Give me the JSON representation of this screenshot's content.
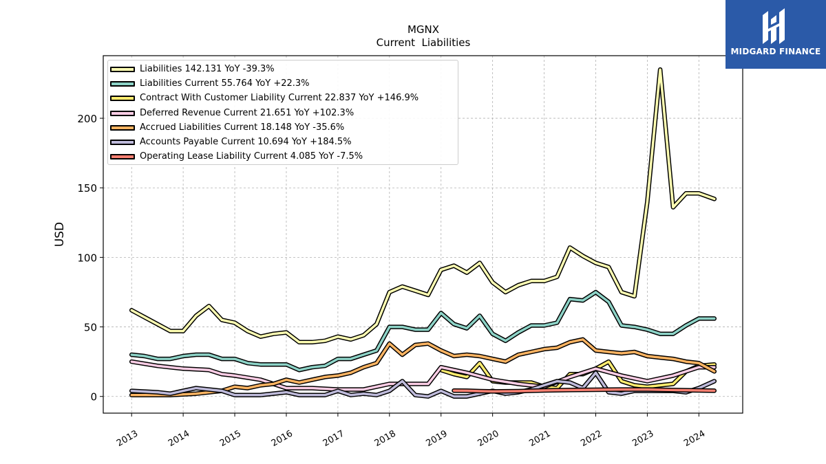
{
  "brand": {
    "name": "MIDGARD FINANCE",
    "logo_icon": "midgard-logo-icon",
    "background": "#2b5aa8"
  },
  "chart_data": {
    "type": "line",
    "title": "MGNX",
    "subtitle": "Current  Liabilities",
    "xlabel": "",
    "ylabel": "USD",
    "ylim": [
      -12,
      245
    ],
    "xlim": [
      2012.45,
      2024.85
    ],
    "yticks": [
      0,
      50,
      100,
      150,
      200
    ],
    "xticks": [
      "2013",
      "2014",
      "2015",
      "2016",
      "2017",
      "2018",
      "2019",
      "2020",
      "2021",
      "2022",
      "2023",
      "2024"
    ],
    "grid": true,
    "legend_position": "top-left",
    "series": [
      {
        "name": "Liabilities",
        "legend": "Liabilities  142.131 YoY -39.3%",
        "color": "#ffffb3",
        "points": [
          [
            2013.0,
            62
          ],
          [
            2013.25,
            57
          ],
          [
            2013.5,
            52
          ],
          [
            2013.75,
            47
          ],
          [
            2014.0,
            47
          ],
          [
            2014.25,
            58
          ],
          [
            2014.5,
            65
          ],
          [
            2014.75,
            55
          ],
          [
            2015.0,
            53
          ],
          [
            2015.25,
            47
          ],
          [
            2015.5,
            43
          ],
          [
            2015.75,
            45
          ],
          [
            2016.0,
            46
          ],
          [
            2016.25,
            39
          ],
          [
            2016.5,
            39
          ],
          [
            2016.75,
            40
          ],
          [
            2017.0,
            43
          ],
          [
            2017.25,
            41
          ],
          [
            2017.5,
            44
          ],
          [
            2017.75,
            52
          ],
          [
            2018.0,
            75
          ],
          [
            2018.25,
            79
          ],
          [
            2018.5,
            76
          ],
          [
            2018.75,
            73
          ],
          [
            2019.0,
            91
          ],
          [
            2019.25,
            94
          ],
          [
            2019.5,
            89
          ],
          [
            2019.75,
            96
          ],
          [
            2020.0,
            82
          ],
          [
            2020.25,
            75
          ],
          [
            2020.5,
            80
          ],
          [
            2020.75,
            83
          ],
          [
            2021.0,
            83
          ],
          [
            2021.25,
            86
          ],
          [
            2021.5,
            107
          ],
          [
            2021.75,
            101
          ],
          [
            2022.0,
            96
          ],
          [
            2022.25,
            93
          ],
          [
            2022.5,
            75
          ],
          [
            2022.75,
            72
          ],
          [
            2023.0,
            140
          ],
          [
            2023.25,
            235
          ],
          [
            2023.5,
            136
          ],
          [
            2023.75,
            146
          ],
          [
            2024.0,
            146
          ],
          [
            2024.3,
            142
          ]
        ]
      },
      {
        "name": "Liabilities Current",
        "legend": "Liabilities Current  55.764 YoY +22.3%",
        "color": "#8dd3c7",
        "points": [
          [
            2013.0,
            30
          ],
          [
            2013.25,
            29
          ],
          [
            2013.5,
            27
          ],
          [
            2013.75,
            27
          ],
          [
            2014.0,
            29
          ],
          [
            2014.25,
            30
          ],
          [
            2014.5,
            30
          ],
          [
            2014.75,
            27
          ],
          [
            2015.0,
            27
          ],
          [
            2015.25,
            24
          ],
          [
            2015.5,
            23
          ],
          [
            2015.75,
            23
          ],
          [
            2016.0,
            23
          ],
          [
            2016.25,
            19
          ],
          [
            2016.5,
            21
          ],
          [
            2016.75,
            22
          ],
          [
            2017.0,
            27
          ],
          [
            2017.25,
            27
          ],
          [
            2017.5,
            30
          ],
          [
            2017.75,
            33
          ],
          [
            2018.0,
            50
          ],
          [
            2018.25,
            50
          ],
          [
            2018.5,
            48
          ],
          [
            2018.75,
            48
          ],
          [
            2019.0,
            60
          ],
          [
            2019.25,
            52
          ],
          [
            2019.5,
            49
          ],
          [
            2019.75,
            58
          ],
          [
            2020.0,
            45
          ],
          [
            2020.25,
            40
          ],
          [
            2020.5,
            46
          ],
          [
            2020.75,
            51
          ],
          [
            2021.0,
            51
          ],
          [
            2021.25,
            53
          ],
          [
            2021.5,
            70
          ],
          [
            2021.75,
            69
          ],
          [
            2022.0,
            75
          ],
          [
            2022.25,
            68
          ],
          [
            2022.5,
            51
          ],
          [
            2022.75,
            50
          ],
          [
            2023.0,
            48
          ],
          [
            2023.25,
            45
          ],
          [
            2023.5,
            45
          ],
          [
            2023.75,
            51
          ],
          [
            2024.0,
            56
          ],
          [
            2024.3,
            56
          ]
        ]
      },
      {
        "name": "Contract With Customer Liability Current",
        "legend": "Contract With Customer Liability Current  22.837 YoY +146.9%",
        "color": "#ffed6f",
        "points": [
          [
            2019.0,
            19
          ],
          [
            2019.25,
            16
          ],
          [
            2019.5,
            14
          ],
          [
            2019.75,
            24
          ],
          [
            2020.0,
            11
          ],
          [
            2020.25,
            10
          ],
          [
            2020.5,
            10
          ],
          [
            2020.75,
            10
          ],
          [
            2021.0,
            7
          ],
          [
            2021.25,
            6
          ],
          [
            2021.5,
            16
          ],
          [
            2021.75,
            16
          ],
          [
            2022.0,
            20
          ],
          [
            2022.25,
            25
          ],
          [
            2022.5,
            11
          ],
          [
            2022.75,
            8
          ],
          [
            2023.0,
            7
          ],
          [
            2023.25,
            8
          ],
          [
            2023.5,
            9
          ],
          [
            2023.75,
            18
          ],
          [
            2024.0,
            22
          ],
          [
            2024.3,
            23
          ]
        ]
      },
      {
        "name": "Deferred Revenue Current",
        "legend": "Deferred Revenue Current  21.651 YoY +102.3%",
        "color": "#fccde5",
        "points": [
          [
            2013.0,
            25
          ],
          [
            2013.5,
            22
          ],
          [
            2014.0,
            20
          ],
          [
            2014.5,
            19
          ],
          [
            2014.75,
            16
          ],
          [
            2015.0,
            15
          ],
          [
            2015.5,
            12
          ],
          [
            2016.0,
            6
          ],
          [
            2016.5,
            6
          ],
          [
            2017.0,
            5
          ],
          [
            2017.5,
            5
          ],
          [
            2018.0,
            9
          ],
          [
            2018.5,
            9
          ],
          [
            2018.75,
            9
          ],
          [
            2019.0,
            21
          ],
          [
            2019.5,
            17
          ],
          [
            2020.0,
            12
          ],
          [
            2020.5,
            9
          ],
          [
            2021.0,
            7
          ],
          [
            2021.5,
            14
          ],
          [
            2022.0,
            20
          ],
          [
            2022.5,
            15
          ],
          [
            2023.0,
            11
          ],
          [
            2023.5,
            15
          ],
          [
            2024.0,
            21
          ],
          [
            2024.3,
            21
          ]
        ]
      },
      {
        "name": "Accrued Liabilities Current",
        "legend": "Accrued Liabilities Current  18.148 YoY -35.6%",
        "color": "#fdb462",
        "points": [
          [
            2013.0,
            1
          ],
          [
            2013.75,
            1
          ],
          [
            2014.25,
            2
          ],
          [
            2014.75,
            4
          ],
          [
            2015.0,
            7
          ],
          [
            2015.25,
            6
          ],
          [
            2015.5,
            8
          ],
          [
            2015.75,
            9
          ],
          [
            2016.0,
            12
          ],
          [
            2016.25,
            10
          ],
          [
            2016.5,
            12
          ],
          [
            2016.75,
            14
          ],
          [
            2017.0,
            15
          ],
          [
            2017.25,
            17
          ],
          [
            2017.5,
            21
          ],
          [
            2017.75,
            24
          ],
          [
            2018.0,
            38
          ],
          [
            2018.25,
            30
          ],
          [
            2018.5,
            37
          ],
          [
            2018.75,
            38
          ],
          [
            2019.0,
            33
          ],
          [
            2019.25,
            29
          ],
          [
            2019.5,
            30
          ],
          [
            2019.75,
            29
          ],
          [
            2020.0,
            27
          ],
          [
            2020.25,
            25
          ],
          [
            2020.5,
            30
          ],
          [
            2020.75,
            32
          ],
          [
            2021.0,
            34
          ],
          [
            2021.25,
            35
          ],
          [
            2021.5,
            39
          ],
          [
            2021.75,
            41
          ],
          [
            2022.0,
            33
          ],
          [
            2022.25,
            32
          ],
          [
            2022.5,
            31
          ],
          [
            2022.75,
            32
          ],
          [
            2023.0,
            29
          ],
          [
            2023.25,
            28
          ],
          [
            2023.5,
            27
          ],
          [
            2023.75,
            25
          ],
          [
            2024.0,
            24
          ],
          [
            2024.3,
            18
          ]
        ]
      },
      {
        "name": "Accounts Payable Current",
        "legend": "Accounts Payable Current  10.694 YoY +184.5%",
        "color": "#bebada",
        "points": [
          [
            2013.0,
            4
          ],
          [
            2013.5,
            3
          ],
          [
            2013.75,
            2
          ],
          [
            2014.0,
            4
          ],
          [
            2014.25,
            6
          ],
          [
            2014.5,
            5
          ],
          [
            2014.75,
            4
          ],
          [
            2015.0,
            1
          ],
          [
            2015.5,
            1
          ],
          [
            2016.0,
            3
          ],
          [
            2016.25,
            1
          ],
          [
            2016.5,
            1
          ],
          [
            2016.75,
            1
          ],
          [
            2017.0,
            4
          ],
          [
            2017.25,
            1
          ],
          [
            2017.5,
            2
          ],
          [
            2017.75,
            1
          ],
          [
            2018.0,
            4
          ],
          [
            2018.25,
            11
          ],
          [
            2018.5,
            1
          ],
          [
            2018.75,
            0
          ],
          [
            2019.0,
            4
          ],
          [
            2019.25,
            0
          ],
          [
            2019.5,
            0
          ],
          [
            2019.75,
            2
          ],
          [
            2020.0,
            4
          ],
          [
            2020.25,
            2
          ],
          [
            2020.5,
            3
          ],
          [
            2020.75,
            5
          ],
          [
            2021.0,
            8
          ],
          [
            2021.25,
            11
          ],
          [
            2021.5,
            10
          ],
          [
            2021.75,
            6
          ],
          [
            2022.0,
            17
          ],
          [
            2022.25,
            3
          ],
          [
            2022.5,
            2
          ],
          [
            2022.75,
            4
          ],
          [
            2023.0,
            4
          ],
          [
            2023.5,
            4
          ],
          [
            2023.75,
            3
          ],
          [
            2024.0,
            6
          ],
          [
            2024.3,
            11
          ]
        ]
      },
      {
        "name": "Operating Lease Liability Current",
        "legend": "Operating Lease Liability Current  4.085 YoY -7.5%",
        "color": "#fb8072",
        "points": [
          [
            2019.25,
            4.2
          ],
          [
            2019.5,
            4.1
          ],
          [
            2019.75,
            3.8
          ],
          [
            2020.0,
            3.6
          ],
          [
            2020.5,
            3.8
          ],
          [
            2021.0,
            4.3
          ],
          [
            2021.5,
            4.6
          ],
          [
            2022.0,
            4.8
          ],
          [
            2022.5,
            5.0
          ],
          [
            2023.0,
            5.0
          ],
          [
            2023.5,
            4.6
          ],
          [
            2024.0,
            4.3
          ],
          [
            2024.3,
            4.1
          ]
        ]
      }
    ]
  }
}
